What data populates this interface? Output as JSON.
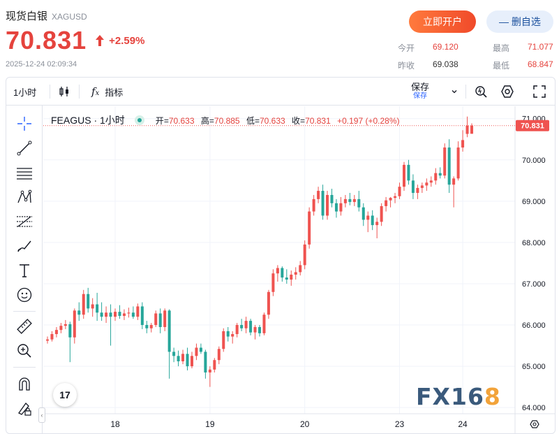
{
  "header": {
    "name": "现货白银",
    "code": "XAGUSD",
    "price": "70.831",
    "change_pct": "+2.59%",
    "timestamp": "2025-12-24 02:09:34",
    "open_account_label": "立即开户",
    "remove_fav_label": "— 删自选",
    "stats": {
      "open_label": "今开",
      "open_value": "69.120",
      "high_label": "最高",
      "high_value": "71.077",
      "prev_label": "昨收",
      "prev_value": "69.038",
      "low_label": "最低",
      "low_value": "68.847"
    }
  },
  "toolbar": {
    "interval": "1小时",
    "indicators_label": "指标",
    "save_label": "保存",
    "save_sub": "保存"
  },
  "legend": {
    "symbol": "FEAGUS · 1小时",
    "open_label": "开",
    "open": "70.633",
    "high_label": "高",
    "high": "70.885",
    "low_label": "低",
    "low": "70.633",
    "close_label": "收",
    "close": "70.831",
    "change": "+0.197",
    "change_pct": "(+0.28%)"
  },
  "watermark": {
    "main": "FX16",
    "accent": "8"
  },
  "tv_logo": "17",
  "colors": {
    "up": "#ef5350",
    "down": "#26a69a",
    "accent": "#e5433d"
  },
  "chart_data": {
    "type": "candlestick",
    "y_ticks": [
      "71.000",
      "70.000",
      "69.000",
      "68.000",
      "67.000",
      "66.000",
      "65.000",
      "64.000"
    ],
    "ylim": [
      63.85,
      71.3
    ],
    "x_ticks": [
      "18",
      "19",
      "20",
      "23",
      "24"
    ],
    "last_price_label": "70.831",
    "last_price": 70.831,
    "candles": [
      [
        65.62,
        65.72,
        65.55,
        65.65
      ],
      [
        65.65,
        65.85,
        65.6,
        65.78
      ],
      [
        65.78,
        65.95,
        65.7,
        65.88
      ],
      [
        65.88,
        66.05,
        65.8,
        65.98
      ],
      [
        65.98,
        66.12,
        65.9,
        66.02
      ],
      [
        66.02,
        66.08,
        65.1,
        65.7
      ],
      [
        65.7,
        66.4,
        65.55,
        66.35
      ],
      [
        66.35,
        66.55,
        66.1,
        66.25
      ],
      [
        66.25,
        66.85,
        66.15,
        66.75
      ],
      [
        66.75,
        66.9,
        66.3,
        66.4
      ],
      [
        66.4,
        66.65,
        66.2,
        66.5
      ],
      [
        66.5,
        66.78,
        66.1,
        66.3
      ],
      [
        66.3,
        66.55,
        66.1,
        66.2
      ],
      [
        66.2,
        66.45,
        66.05,
        66.3
      ],
      [
        66.3,
        66.5,
        65.5,
        66.2
      ],
      [
        66.2,
        66.4,
        66.1,
        66.32
      ],
      [
        66.32,
        66.48,
        66.15,
        66.22
      ],
      [
        66.22,
        66.38,
        66.12,
        66.28
      ],
      [
        66.28,
        66.42,
        66.18,
        66.3
      ],
      [
        66.3,
        66.45,
        66.15,
        66.2
      ],
      [
        66.2,
        66.52,
        66.12,
        66.45
      ],
      [
        66.45,
        66.55,
        65.9,
        66.0
      ],
      [
        66.0,
        66.1,
        65.8,
        65.92
      ],
      [
        65.92,
        66.05,
        65.82,
        66.0
      ],
      [
        66.0,
        66.35,
        65.95,
        66.28
      ],
      [
        66.28,
        66.4,
        65.8,
        65.95
      ],
      [
        65.95,
        66.4,
        65.85,
        66.35
      ],
      [
        66.35,
        66.38,
        64.7,
        65.35
      ],
      [
        65.35,
        65.45,
        65.1,
        65.25
      ],
      [
        65.25,
        65.38,
        65.0,
        65.12
      ],
      [
        65.12,
        65.4,
        65.05,
        65.3
      ],
      [
        65.3,
        65.45,
        64.9,
        65.0
      ],
      [
        65.0,
        65.35,
        64.95,
        65.25
      ],
      [
        65.25,
        65.55,
        65.15,
        65.45
      ],
      [
        65.45,
        65.55,
        65.3,
        65.35
      ],
      [
        65.35,
        65.4,
        64.7,
        64.85
      ],
      [
        64.85,
        65.0,
        64.5,
        64.92
      ],
      [
        64.92,
        65.2,
        64.85,
        65.15
      ],
      [
        65.15,
        65.48,
        65.05,
        65.42
      ],
      [
        65.42,
        65.92,
        65.35,
        65.85
      ],
      [
        65.85,
        65.95,
        65.6,
        65.72
      ],
      [
        65.72,
        65.85,
        65.55,
        65.78
      ],
      [
        65.78,
        66.05,
        65.7,
        66.0
      ],
      [
        66.0,
        66.15,
        65.85,
        65.92
      ],
      [
        65.92,
        66.2,
        65.8,
        66.1
      ],
      [
        66.1,
        66.15,
        65.75,
        65.82
      ],
      [
        65.82,
        66.0,
        65.65,
        65.95
      ],
      [
        65.95,
        66.0,
        65.72,
        65.8
      ],
      [
        65.8,
        66.3,
        65.75,
        66.25
      ],
      [
        66.25,
        66.85,
        66.15,
        66.8
      ],
      [
        66.8,
        67.35,
        66.7,
        67.25
      ],
      [
        67.25,
        67.45,
        67.05,
        67.38
      ],
      [
        67.38,
        67.42,
        67.05,
        67.15
      ],
      [
        67.15,
        67.35,
        67.0,
        67.1
      ],
      [
        67.1,
        67.32,
        66.95,
        67.22
      ],
      [
        67.22,
        67.4,
        67.1,
        67.28
      ],
      [
        67.28,
        67.55,
        67.2,
        67.45
      ],
      [
        67.45,
        68.05,
        67.35,
        67.95
      ],
      [
        67.95,
        68.85,
        67.85,
        68.75
      ],
      [
        68.75,
        69.15,
        68.65,
        69.05
      ],
      [
        69.05,
        69.35,
        68.95,
        69.25
      ],
      [
        69.25,
        69.4,
        68.55,
        68.65
      ],
      [
        68.65,
        69.25,
        68.55,
        69.15
      ],
      [
        69.15,
        69.3,
        68.85,
        68.95
      ],
      [
        68.95,
        69.05,
        68.6,
        68.75
      ],
      [
        68.75,
        69.1,
        68.65,
        68.95
      ],
      [
        68.95,
        69.15,
        68.85,
        69.05
      ],
      [
        69.05,
        69.2,
        68.9,
        68.98
      ],
      [
        68.98,
        69.15,
        68.88,
        69.05
      ],
      [
        69.05,
        69.25,
        68.75,
        68.85
      ],
      [
        68.85,
        68.95,
        68.4,
        68.55
      ],
      [
        68.55,
        68.75,
        68.25,
        68.65
      ],
      [
        68.65,
        68.78,
        68.3,
        68.42
      ],
      [
        68.42,
        68.6,
        68.1,
        68.5
      ],
      [
        68.5,
        68.95,
        68.4,
        68.88
      ],
      [
        68.88,
        69.1,
        68.75,
        69.02
      ],
      [
        69.02,
        69.1,
        68.85,
        69.08
      ],
      [
        69.08,
        69.2,
        68.95,
        69.12
      ],
      [
        69.12,
        69.45,
        69.05,
        69.35
      ],
      [
        69.35,
        69.95,
        69.25,
        69.88
      ],
      [
        69.88,
        70.0,
        69.4,
        69.5
      ],
      [
        69.5,
        69.65,
        69.05,
        69.2
      ],
      [
        69.2,
        69.4,
        69.05,
        69.32
      ],
      [
        69.32,
        69.45,
        69.2,
        69.38
      ],
      [
        69.38,
        69.55,
        69.25,
        69.45
      ],
      [
        69.45,
        69.6,
        69.35,
        69.5
      ],
      [
        69.5,
        69.8,
        69.4,
        69.68
      ],
      [
        69.68,
        69.82,
        69.55,
        69.62
      ],
      [
        69.62,
        70.4,
        69.55,
        70.3
      ],
      [
        70.3,
        70.5,
        69.2,
        69.4
      ],
      [
        69.4,
        69.6,
        68.85,
        69.55
      ],
      [
        69.55,
        70.45,
        69.5,
        70.3
      ],
      [
        70.3,
        70.72,
        70.2,
        70.48
      ],
      [
        70.63,
        71.05,
        70.55,
        70.83
      ],
      [
        70.633,
        70.885,
        70.633,
        70.831
      ]
    ]
  }
}
